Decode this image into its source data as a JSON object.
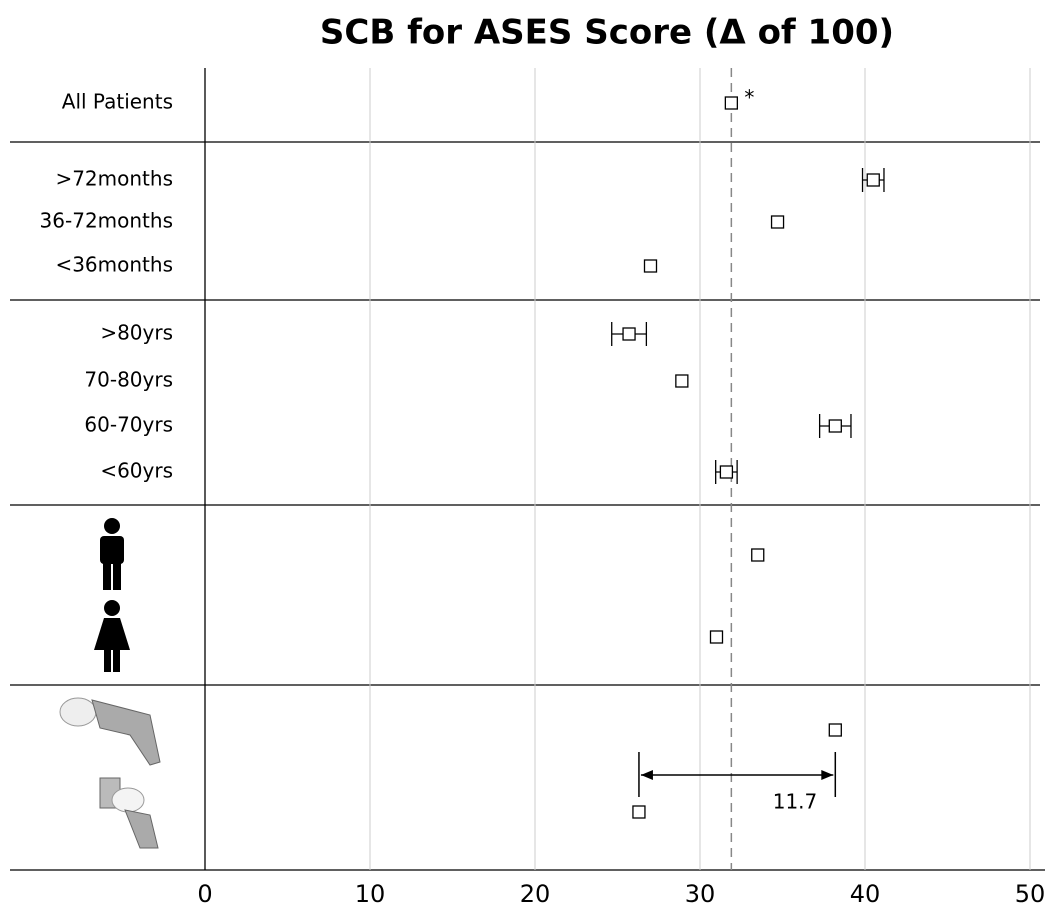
{
  "chart_data": {
    "type": "forest",
    "title": "SCB for ASES Score (Δ of 100)",
    "categories": [
      "All Patients",
      ">72months",
      "36-72months",
      "<36months",
      ">80yrs",
      "70-80yrs",
      "60-70yrs",
      "<60yrs",
      null,
      null,
      null,
      null
    ],
    "values": [
      31.9,
      40.5,
      34.7,
      27.0,
      25.7,
      28.9,
      38.2,
      31.6,
      33.5,
      31.0,
      38.2,
      26.3
    ],
    "errors": [
      null,
      0.65,
      null,
      null,
      1.05,
      null,
      0.95,
      0.65,
      null,
      null,
      null,
      null
    ],
    "reference_line": 31.9,
    "asterisk": "*",
    "difference_label": "11.7",
    "xlim": [
      0,
      50
    ],
    "xticks": [
      0,
      10,
      20,
      30,
      40,
      50
    ],
    "grid": true
  }
}
